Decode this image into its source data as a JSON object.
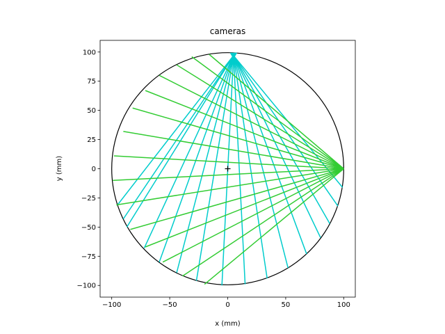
{
  "chart_data": {
    "type": "line",
    "title": "cameras",
    "xlabel": "x (mm)",
    "ylabel": "y (mm)",
    "xlim": [
      -110,
      110
    ],
    "ylim": [
      -110,
      110
    ],
    "xticks": [
      -100,
      -50,
      0,
      50,
      100
    ],
    "yticks": [
      -100,
      -75,
      -50,
      -25,
      0,
      25,
      50,
      75,
      100
    ],
    "xtick_labels": [
      "−100",
      "−50",
      "0",
      "50",
      "100"
    ],
    "ytick_labels": [
      "−100",
      "−75",
      "−50",
      "−25",
      "0",
      "25",
      "50",
      "75",
      "100"
    ],
    "grid": false,
    "aspect": "equal",
    "circle": {
      "center": [
        0,
        0
      ],
      "radius": 100,
      "color": "#000000"
    },
    "center_marker": {
      "x": 0,
      "y": 0,
      "marker": "+",
      "color": "#000000"
    },
    "series": [
      {
        "color": "#00cccc",
        "source": [
          5,
          97
        ],
        "marker": "triangle-down",
        "endpoints": [
          [
            -95,
            -31
          ],
          [
            -90,
            -43
          ],
          [
            -87,
            -50
          ],
          [
            -72,
            -68
          ],
          [
            -59,
            -80
          ],
          [
            -44,
            -89
          ],
          [
            -27,
            -96
          ],
          [
            -5,
            -100
          ],
          [
            15,
            -99
          ],
          [
            34,
            -94
          ],
          [
            52,
            -85
          ],
          [
            68,
            -73
          ],
          [
            80,
            -59
          ],
          [
            88,
            -47
          ],
          [
            95,
            -32
          ],
          [
            99,
            -16
          ]
        ]
      },
      {
        "color": "#33cc33",
        "source": [
          100,
          0
        ],
        "marker": "none",
        "endpoints": [
          [
            -16,
            98
          ],
          [
            -31,
            96
          ],
          [
            -44,
            89
          ],
          [
            -59,
            80
          ],
          [
            -71,
            67
          ],
          [
            -82,
            52
          ],
          [
            -90,
            32
          ],
          [
            -98,
            11
          ],
          [
            -99,
            -10
          ],
          [
            -96,
            -31
          ],
          [
            -84,
            -52
          ],
          [
            -71,
            -67
          ],
          [
            -56,
            -80
          ],
          [
            -39,
            -92
          ],
          [
            -20,
            -99
          ]
        ]
      }
    ]
  }
}
